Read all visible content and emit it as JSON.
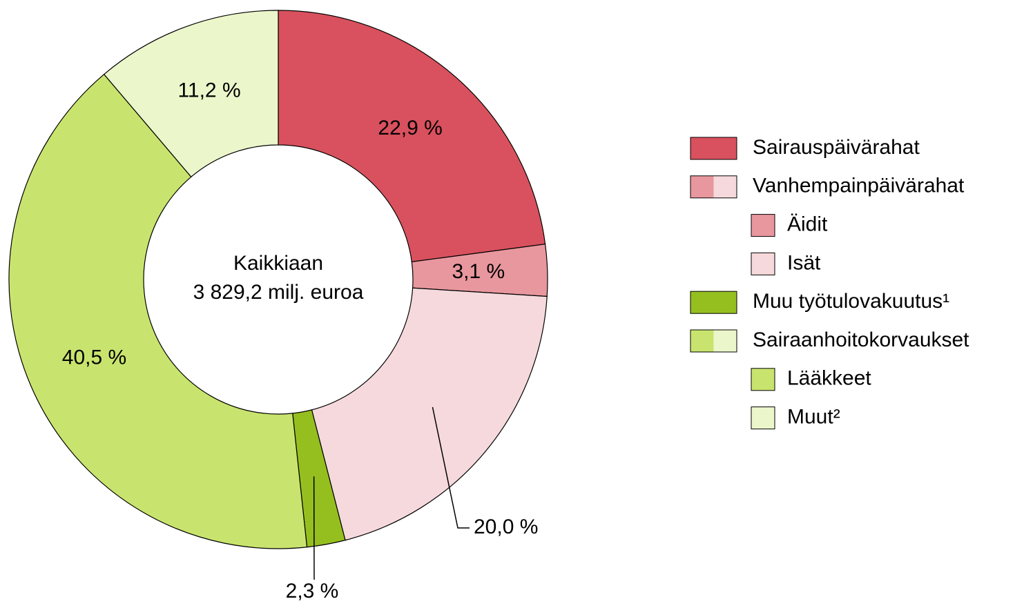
{
  "chart_data": {
    "type": "pie",
    "center_label": [
      "Kaikkiaan",
      "3 829,2 milj. euroa"
    ],
    "categories": [
      "Sairauspäivärahat",
      "Äidit",
      "Isät",
      "Muu työtulovakuutus¹",
      "Lääkkeet",
      "Muut²"
    ],
    "parents": [
      null,
      "Vanhempainpäivärahat",
      "Vanhempainpäivärahat",
      null,
      "Sairaanhoitokorvaukset",
      "Sairaanhoitokorvaukset"
    ],
    "values": [
      22.9,
      3.1,
      20.0,
      2.3,
      40.5,
      11.2
    ],
    "value_labels": [
      "22,9 %",
      "3,1 %",
      "20,0 %",
      "2,3 %",
      "40,5 %",
      "11,2 %"
    ],
    "colors": [
      "#d9515e",
      "#e8979e",
      "#f6d9dc",
      "#95bf1f",
      "#c9e46e",
      "#ebf6cb"
    ]
  }
}
